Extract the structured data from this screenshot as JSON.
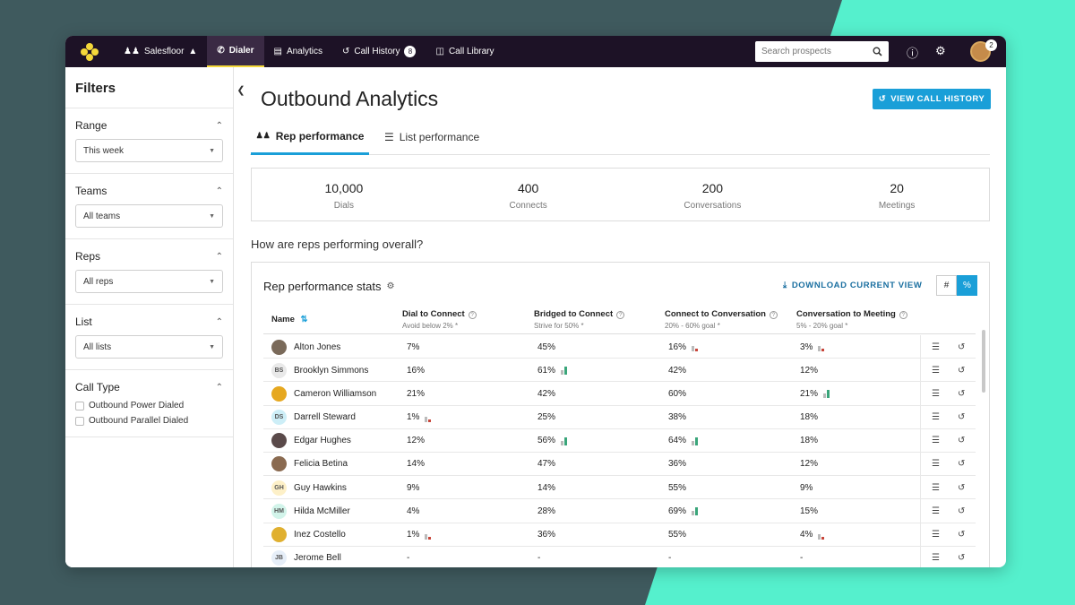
{
  "nav": {
    "items": [
      {
        "label": "Salesfloor",
        "icon": "people-icon",
        "active": false
      },
      {
        "label": "Dialer",
        "icon": "phone-icon",
        "active": true
      },
      {
        "label": "Analytics",
        "icon": "chart-icon",
        "active": false
      },
      {
        "label": "Call History",
        "icon": "history-icon",
        "active": false,
        "badge": "8"
      },
      {
        "label": "Call Library",
        "icon": "library-icon",
        "active": false
      }
    ],
    "search_placeholder": "Search prospects",
    "avatar_badge": "2"
  },
  "sidebar": {
    "title": "Filters",
    "sections": [
      {
        "label": "Range",
        "value": "This week"
      },
      {
        "label": "Teams",
        "value": "All teams"
      },
      {
        "label": "Reps",
        "value": "All reps"
      },
      {
        "label": "List",
        "value": "All lists"
      }
    ],
    "call_type": {
      "label": "Call Type",
      "options": [
        "Outbound Power Dialed",
        "Outbound Parallel Dialed"
      ]
    }
  },
  "main": {
    "title": "Outbound Analytics",
    "view_history_label": "VIEW CALL HISTORY",
    "tabs": [
      {
        "label": "Rep performance",
        "active": true
      },
      {
        "label": "List performance",
        "active": false
      }
    ],
    "stats": [
      {
        "value": "10,000",
        "label": "Dials"
      },
      {
        "value": "400",
        "label": "Connects"
      },
      {
        "value": "200",
        "label": "Conversations"
      },
      {
        "value": "20",
        "label": "Meetings"
      }
    ],
    "question": "How are reps performing overall?",
    "panel": {
      "title": "Rep performance stats",
      "download_label": "DOWNLOAD CURRENT VIEW",
      "toggle": [
        "#",
        "%"
      ]
    },
    "table": {
      "columns": [
        {
          "label": "Name",
          "sub": ""
        },
        {
          "label": "Dial to Connect",
          "sub": "Avoid below 2% *"
        },
        {
          "label": "Bridged to Connect",
          "sub": "Strive for 50% *"
        },
        {
          "label": "Connect to Conversation",
          "sub": "20% - 60% goal *"
        },
        {
          "label": "Conversation to Meeting",
          "sub": "5% - 20% goal *"
        }
      ],
      "rows": [
        {
          "name": "Alton Jones",
          "initials": "",
          "avatar_color": "#7a6a5a",
          "vals": [
            "7%",
            "45%",
            "16%",
            "3%"
          ],
          "marks": [
            "",
            "",
            "down",
            "down"
          ]
        },
        {
          "name": "Brooklyn Simmons",
          "initials": "BS",
          "avatar_color": "#e9e9e9",
          "vals": [
            "16%",
            "61%",
            "42%",
            "12%"
          ],
          "marks": [
            "",
            "up",
            "",
            ""
          ]
        },
        {
          "name": "Cameron Williamson",
          "initials": "",
          "avatar_color": "#e6a820",
          "vals": [
            "21%",
            "42%",
            "60%",
            "21%"
          ],
          "marks": [
            "",
            "",
            "",
            "up"
          ]
        },
        {
          "name": "Darrell Steward",
          "initials": "DS",
          "avatar_color": "#cdeef7",
          "vals": [
            "1%",
            "25%",
            "38%",
            "18%"
          ],
          "marks": [
            "down",
            "",
            "",
            ""
          ]
        },
        {
          "name": "Edgar Hughes",
          "initials": "",
          "avatar_color": "#5a4a4a",
          "vals": [
            "12%",
            "56%",
            "64%",
            "18%"
          ],
          "marks": [
            "",
            "up",
            "up",
            ""
          ]
        },
        {
          "name": "Felicia Betina",
          "initials": "",
          "avatar_color": "#8a6a50",
          "vals": [
            "14%",
            "47%",
            "36%",
            "12%"
          ],
          "marks": [
            "",
            "",
            "",
            ""
          ]
        },
        {
          "name": "Guy Hawkins",
          "initials": "GH",
          "avatar_color": "#fdf0c8",
          "vals": [
            "9%",
            "14%",
            "55%",
            "9%"
          ],
          "marks": [
            "",
            "",
            "",
            ""
          ]
        },
        {
          "name": "Hilda McMiller",
          "initials": "HM",
          "avatar_color": "#d2f4ea",
          "vals": [
            "4%",
            "28%",
            "69%",
            "15%"
          ],
          "marks": [
            "",
            "",
            "up",
            ""
          ]
        },
        {
          "name": "Inez Costello",
          "initials": "",
          "avatar_color": "#e0b030",
          "vals": [
            "1%",
            "36%",
            "55%",
            "4%"
          ],
          "marks": [
            "down",
            "",
            "",
            "down"
          ]
        },
        {
          "name": "Jerome Bell",
          "initials": "JB",
          "avatar_color": "#e6eef8",
          "vals": [
            "-",
            "-",
            "-",
            "-"
          ],
          "marks": [
            "",
            "",
            "",
            ""
          ]
        }
      ]
    }
  },
  "colors": {
    "accent": "#1a9fd8",
    "nav_bg": "#1d1226",
    "good": "#3aa57a",
    "bad": "#c8453a"
  }
}
